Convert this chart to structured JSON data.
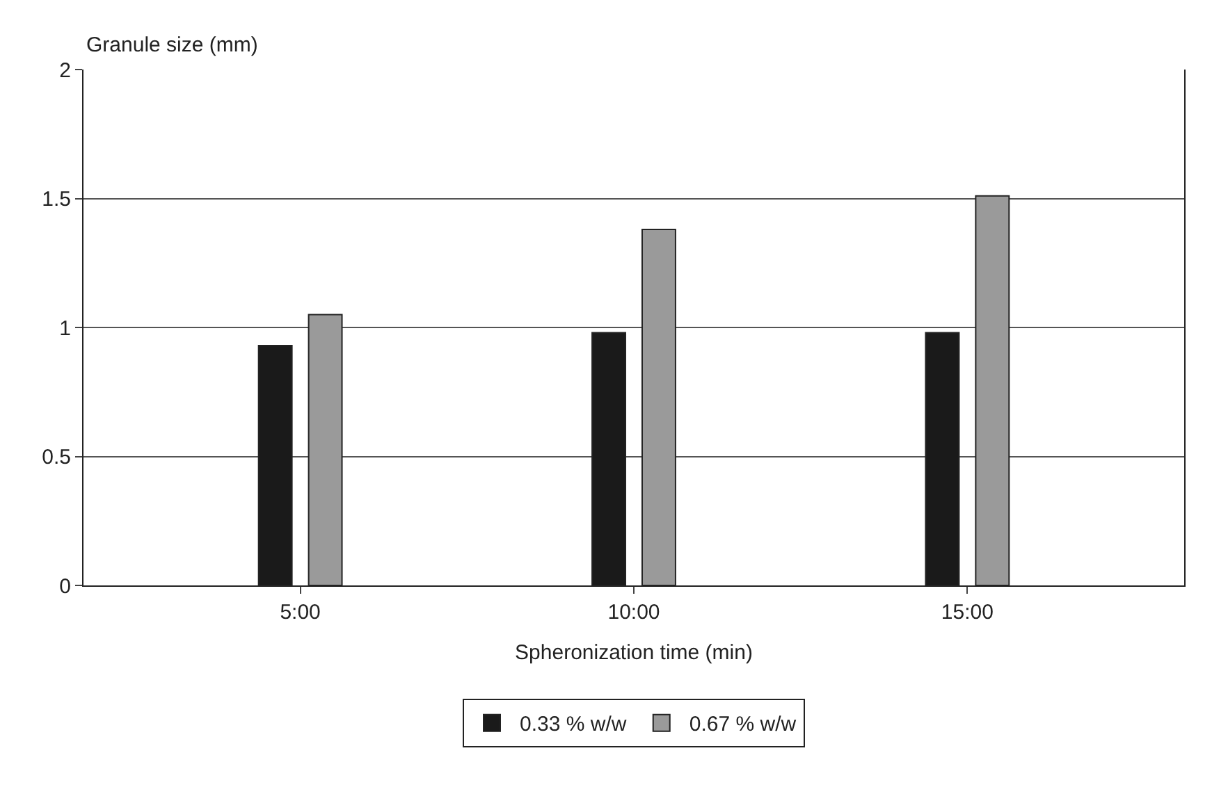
{
  "chart_data": {
    "type": "bar",
    "ylabel": "Granule size (mm)",
    "xlabel": "Spheronization time (min)",
    "categories": [
      "5:00",
      "10:00",
      "15:00"
    ],
    "series": [
      {
        "name": "0.33 % w/w",
        "color": "#1a1a1a",
        "values": [
          0.93,
          0.98,
          0.98
        ]
      },
      {
        "name": "0.67 % w/w",
        "color": "#9a9a9a",
        "values": [
          1.05,
          1.38,
          1.51
        ]
      }
    ],
    "ylim": [
      0,
      2
    ],
    "yticks": [
      0,
      0.5,
      1,
      1.5,
      2
    ],
    "grid": "y",
    "legend": "bottom"
  }
}
